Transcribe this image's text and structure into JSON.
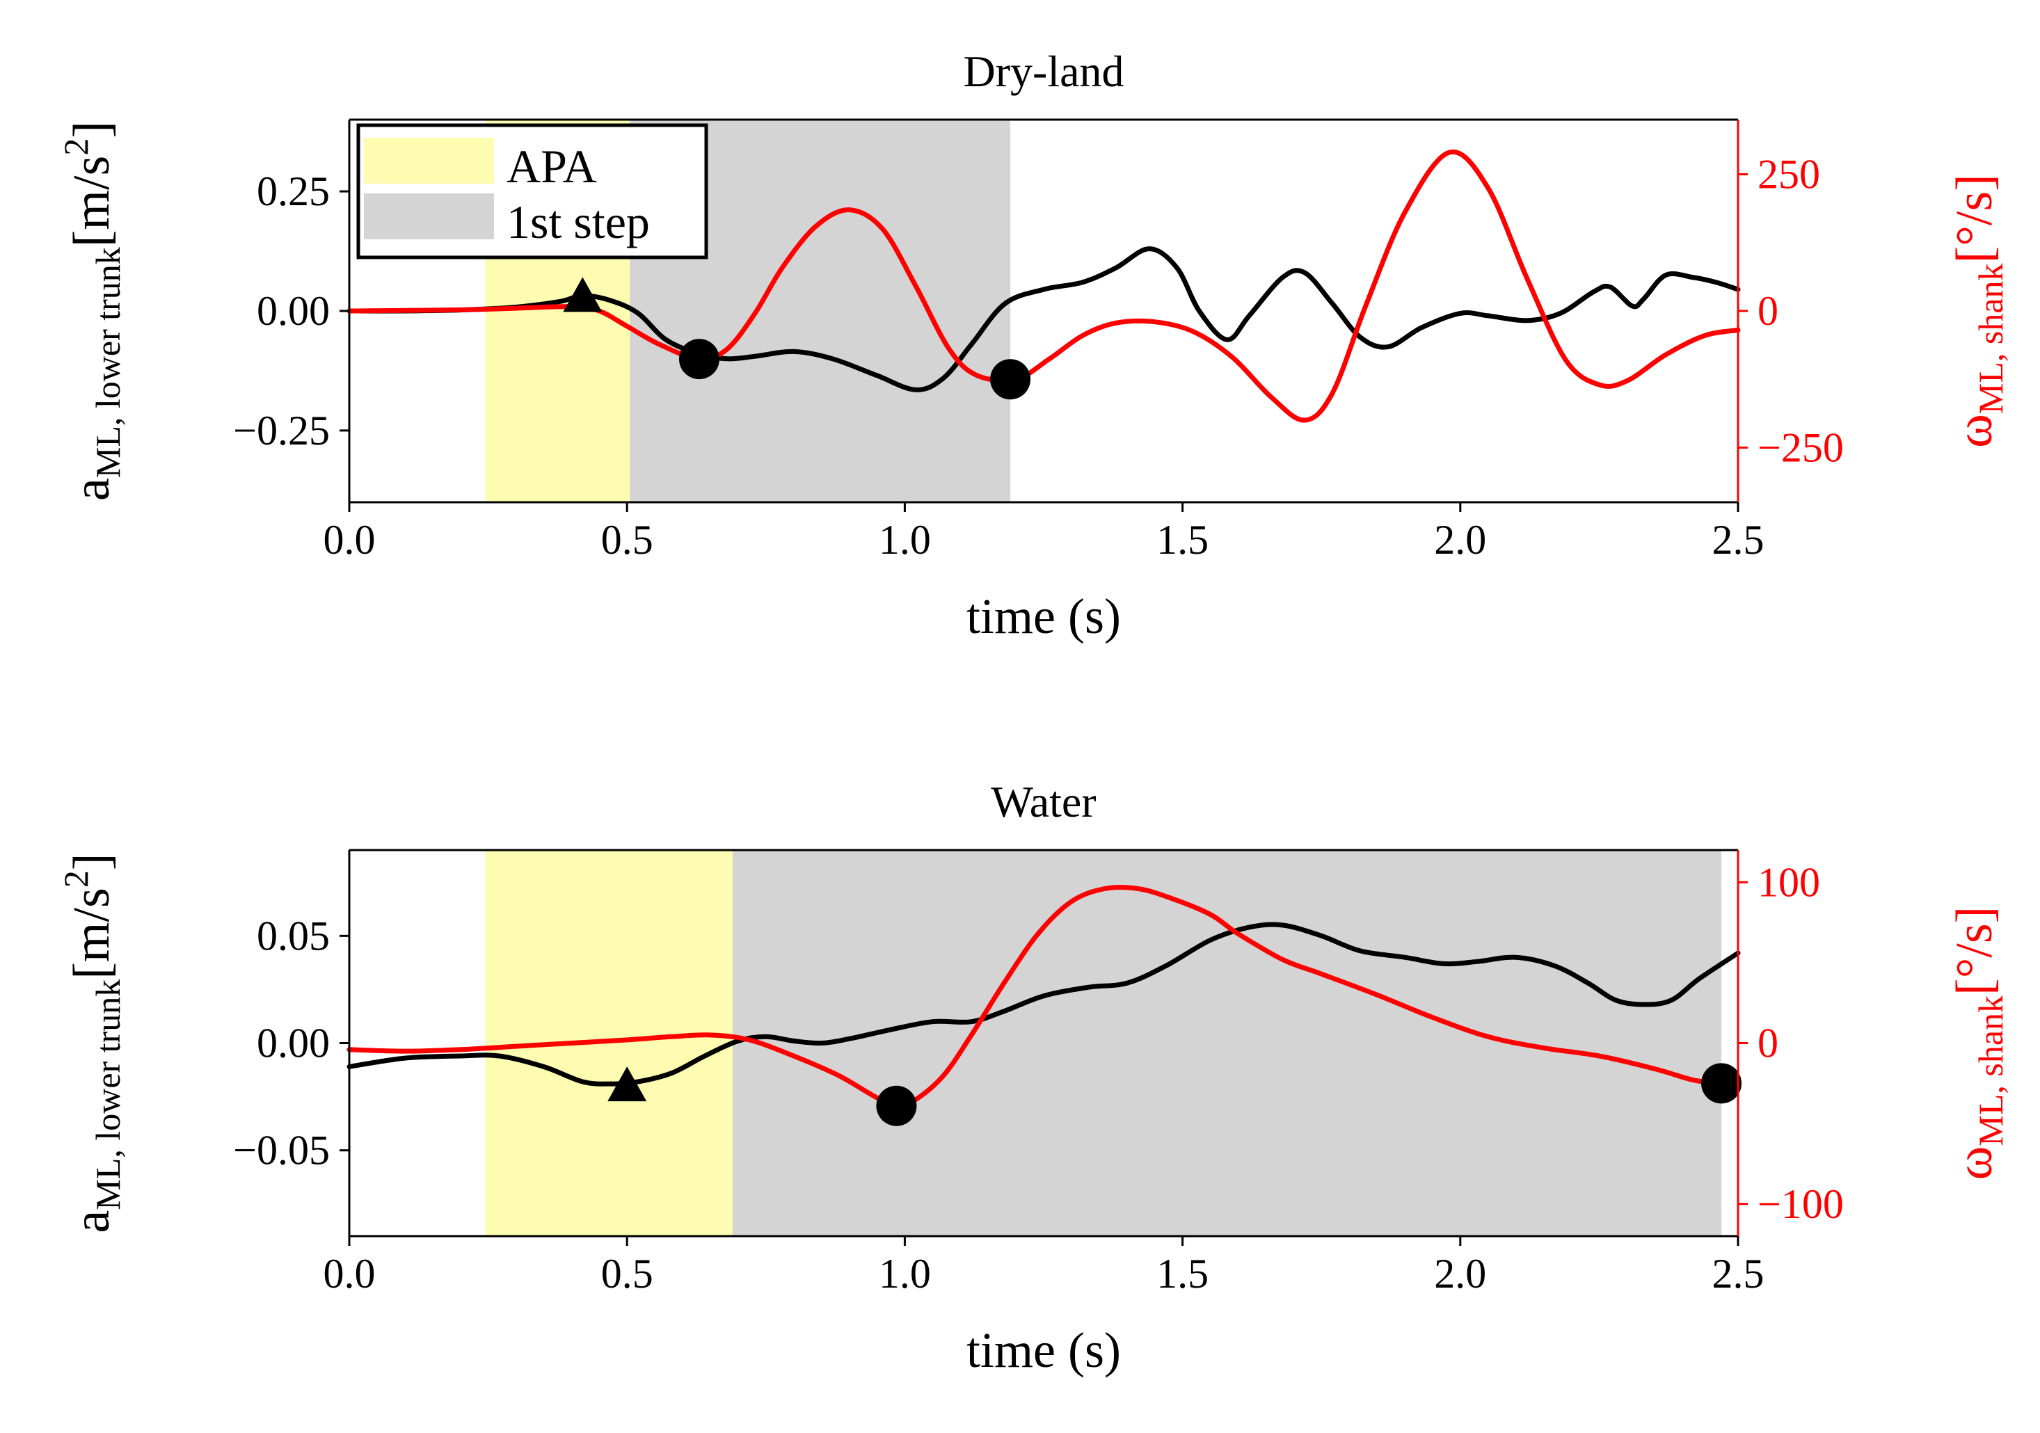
{
  "chart_data": [
    {
      "type": "line",
      "title": "Dry-land",
      "xlabel": "time (s)",
      "ylabel_main": "a",
      "ylabel_sub": "ML, lower trunk",
      "ylabel_unit": "[m/s",
      "ylabel_sup": "2",
      "ylabel_close": "]",
      "ylabel_right_main": "ω",
      "ylabel_right_sub": "ML, shank",
      "ylabel_right_unit": "[°/s]",
      "xlim": [
        0,
        2.5
      ],
      "ylim": [
        -0.4,
        0.4
      ],
      "ylim_right": [
        -350,
        350
      ],
      "xticks": [
        0.0,
        0.5,
        1.0,
        1.5,
        2.0,
        2.5
      ],
      "xtick_labels": [
        "0.0",
        "0.5",
        "1.0",
        "1.5",
        "2.0",
        "2.5"
      ],
      "yticks": [
        0.25,
        0.0,
        -0.25
      ],
      "ytick_labels": [
        "0.25",
        "0.00",
        "−0.25"
      ],
      "yticks_right": [
        250,
        0,
        -250
      ],
      "ytick_labels_right": [
        "250",
        "0",
        "−250"
      ],
      "spans": [
        {
          "name": "APA",
          "start": 0.245,
          "end": 0.505,
          "color": "#fdfcb1"
        },
        {
          "name": "1st step",
          "start": 0.505,
          "end": 1.19,
          "color": "#d4d4d4"
        }
      ],
      "legend": {
        "location": "top-left",
        "entries": [
          "APA",
          "1st step"
        ]
      },
      "series": [
        {
          "name": "a_ML lower trunk",
          "axis": "left",
          "color": "#000000",
          "points": [
            [
              0.0,
              0.0
            ],
            [
              0.1,
              0.0
            ],
            [
              0.2,
              0.002
            ],
            [
              0.3,
              0.008
            ],
            [
              0.38,
              0.02
            ],
            [
              0.42,
              0.032
            ],
            [
              0.47,
              0.022
            ],
            [
              0.52,
              -0.005
            ],
            [
              0.57,
              -0.06
            ],
            [
              0.63,
              -0.09
            ],
            [
              0.68,
              -0.1
            ],
            [
              0.73,
              -0.095
            ],
            [
              0.8,
              -0.085
            ],
            [
              0.87,
              -0.1
            ],
            [
              0.95,
              -0.135
            ],
            [
              1.02,
              -0.165
            ],
            [
              1.07,
              -0.14
            ],
            [
              1.12,
              -0.07
            ],
            [
              1.18,
              0.015
            ],
            [
              1.25,
              0.045
            ],
            [
              1.32,
              0.06
            ],
            [
              1.38,
              0.09
            ],
            [
              1.44,
              0.13
            ],
            [
              1.49,
              0.09
            ],
            [
              1.53,
              0.0
            ],
            [
              1.58,
              -0.06
            ],
            [
              1.62,
              -0.01
            ],
            [
              1.68,
              0.07
            ],
            [
              1.72,
              0.08
            ],
            [
              1.77,
              0.015
            ],
            [
              1.82,
              -0.055
            ],
            [
              1.87,
              -0.075
            ],
            [
              1.93,
              -0.035
            ],
            [
              2.0,
              -0.005
            ],
            [
              2.05,
              -0.01
            ],
            [
              2.12,
              -0.02
            ],
            [
              2.18,
              -0.005
            ],
            [
              2.24,
              0.04
            ],
            [
              2.27,
              0.05
            ],
            [
              2.31,
              0.01
            ],
            [
              2.33,
              0.025
            ],
            [
              2.37,
              0.075
            ],
            [
              2.42,
              0.07
            ],
            [
              2.46,
              0.06
            ],
            [
              2.5,
              0.045
            ]
          ]
        },
        {
          "name": "omega_ML shank",
          "axis": "right",
          "color": "#ff0000",
          "points": [
            [
              0.0,
              0.0
            ],
            [
              0.2,
              2.0
            ],
            [
              0.3,
              5.0
            ],
            [
              0.4,
              8.0
            ],
            [
              0.45,
              0.0
            ],
            [
              0.5,
              -28.0
            ],
            [
              0.56,
              -62.0
            ],
            [
              0.63,
              -88.0
            ],
            [
              0.68,
              -70.0
            ],
            [
              0.73,
              -5.0
            ],
            [
              0.78,
              80.0
            ],
            [
              0.84,
              155.0
            ],
            [
              0.9,
              185.0
            ],
            [
              0.96,
              150.0
            ],
            [
              1.02,
              45.0
            ],
            [
              1.08,
              -70.0
            ],
            [
              1.13,
              -118.0
            ],
            [
              1.2,
              -125.0
            ],
            [
              1.26,
              -88.0
            ],
            [
              1.32,
              -45.0
            ],
            [
              1.38,
              -22.0
            ],
            [
              1.45,
              -20.0
            ],
            [
              1.52,
              -38.0
            ],
            [
              1.59,
              -85.0
            ],
            [
              1.66,
              -158.0
            ],
            [
              1.72,
              -200.0
            ],
            [
              1.77,
              -150.0
            ],
            [
              1.83,
              10.0
            ],
            [
              1.9,
              180.0
            ],
            [
              1.98,
              290.0
            ],
            [
              2.05,
              225.0
            ],
            [
              2.12,
              60.0
            ],
            [
              2.19,
              -90.0
            ],
            [
              2.25,
              -135.0
            ],
            [
              2.3,
              -128.0
            ],
            [
              2.37,
              -80.0
            ],
            [
              2.44,
              -45.0
            ],
            [
              2.5,
              -35.0
            ]
          ]
        }
      ],
      "markers": [
        {
          "shape": "triangle",
          "series": "a_ML lower trunk",
          "x": 0.42,
          "y": 0.03
        },
        {
          "shape": "circle",
          "series": "omega_ML shank",
          "x": 0.63,
          "y": -88.0
        },
        {
          "shape": "circle",
          "series": "omega_ML shank",
          "x": 1.19,
          "y": -125.0
        }
      ]
    },
    {
      "type": "line",
      "title": "Water",
      "xlabel": "time (s)",
      "ylabel_main": "a",
      "ylabel_sub": "ML, lower trunk",
      "ylabel_unit": "[m/s",
      "ylabel_sup": "2",
      "ylabel_close": "]",
      "ylabel_right_main": "ω",
      "ylabel_right_sub": "ML, shank",
      "ylabel_right_unit": "[°/s]",
      "xlim": [
        0,
        2.5
      ],
      "ylim": [
        -0.09,
        0.09
      ],
      "ylim_right": [
        -120,
        120
      ],
      "xticks": [
        0.0,
        0.5,
        1.0,
        1.5,
        2.0,
        2.5
      ],
      "xtick_labels": [
        "0.0",
        "0.5",
        "1.0",
        "1.5",
        "2.0",
        "2.5"
      ],
      "yticks": [
        0.05,
        0.0,
        -0.05
      ],
      "ytick_labels": [
        "0.05",
        "0.00",
        "−0.05"
      ],
      "yticks_right": [
        100,
        0,
        -100
      ],
      "ytick_labels_right": [
        "100",
        "0",
        "−100"
      ],
      "spans": [
        {
          "name": "APA",
          "start": 0.245,
          "end": 0.69,
          "color": "#fdfcb1"
        },
        {
          "name": "1st step",
          "start": 0.69,
          "end": 2.47,
          "color": "#d4d4d4"
        }
      ],
      "series": [
        {
          "name": "a_ML lower trunk",
          "axis": "left",
          "color": "#000000",
          "points": [
            [
              0.0,
              -0.011
            ],
            [
              0.1,
              -0.007
            ],
            [
              0.2,
              -0.006
            ],
            [
              0.27,
              -0.006
            ],
            [
              0.35,
              -0.011
            ],
            [
              0.42,
              -0.018
            ],
            [
              0.47,
              -0.019
            ],
            [
              0.52,
              -0.018
            ],
            [
              0.58,
              -0.014
            ],
            [
              0.64,
              -0.006
            ],
            [
              0.7,
              0.001
            ],
            [
              0.75,
              0.003
            ],
            [
              0.8,
              0.001
            ],
            [
              0.85,
              0.0
            ],
            [
              0.9,
              0.002
            ],
            [
              0.97,
              0.006
            ],
            [
              1.05,
              0.01
            ],
            [
              1.12,
              0.01
            ],
            [
              1.18,
              0.015
            ],
            [
              1.25,
              0.022
            ],
            [
              1.33,
              0.026
            ],
            [
              1.4,
              0.028
            ],
            [
              1.47,
              0.036
            ],
            [
              1.55,
              0.048
            ],
            [
              1.62,
              0.054
            ],
            [
              1.68,
              0.055
            ],
            [
              1.75,
              0.05
            ],
            [
              1.82,
              0.043
            ],
            [
              1.9,
              0.04
            ],
            [
              1.97,
              0.037
            ],
            [
              2.03,
              0.038
            ],
            [
              2.1,
              0.04
            ],
            [
              2.17,
              0.036
            ],
            [
              2.23,
              0.028
            ],
            [
              2.28,
              0.02
            ],
            [
              2.33,
              0.018
            ],
            [
              2.38,
              0.02
            ],
            [
              2.43,
              0.03
            ],
            [
              2.5,
              0.042
            ]
          ]
        },
        {
          "name": "omega_ML shank",
          "axis": "right",
          "color": "#ff0000",
          "points": [
            [
              0.0,
              -4.0
            ],
            [
              0.1,
              -5.0
            ],
            [
              0.2,
              -4.0
            ],
            [
              0.3,
              -2.0
            ],
            [
              0.4,
              0.0
            ],
            [
              0.5,
              2.0
            ],
            [
              0.58,
              4.0
            ],
            [
              0.65,
              5.0
            ],
            [
              0.72,
              2.0
            ],
            [
              0.8,
              -8.0
            ],
            [
              0.88,
              -20.0
            ],
            [
              0.95,
              -34.0
            ],
            [
              0.985,
              -39.0
            ],
            [
              1.02,
              -35.0
            ],
            [
              1.07,
              -20.0
            ],
            [
              1.12,
              5.0
            ],
            [
              1.18,
              38.0
            ],
            [
              1.24,
              68.0
            ],
            [
              1.3,
              88.0
            ],
            [
              1.36,
              96.0
            ],
            [
              1.42,
              96.0
            ],
            [
              1.48,
              90.0
            ],
            [
              1.55,
              80.0
            ],
            [
              1.6,
              68.0
            ],
            [
              1.68,
              52.0
            ],
            [
              1.75,
              43.0
            ],
            [
              1.85,
              30.0
            ],
            [
              1.95,
              16.0
            ],
            [
              2.05,
              4.0
            ],
            [
              2.15,
              -3.0
            ],
            [
              2.25,
              -8.0
            ],
            [
              2.35,
              -16.0
            ],
            [
              2.42,
              -23.0
            ],
            [
              2.47,
              -25.0
            ],
            [
              2.5,
              -26.0
            ]
          ]
        }
      ],
      "markers": [
        {
          "shape": "triangle",
          "series": "a_ML lower trunk",
          "x": 0.5,
          "y": -0.02
        },
        {
          "shape": "circle",
          "series": "omega_ML shank",
          "x": 0.985,
          "y": -39.0
        },
        {
          "shape": "circle",
          "series": "omega_ML shank",
          "x": 2.47,
          "y": -25.0
        }
      ]
    }
  ]
}
